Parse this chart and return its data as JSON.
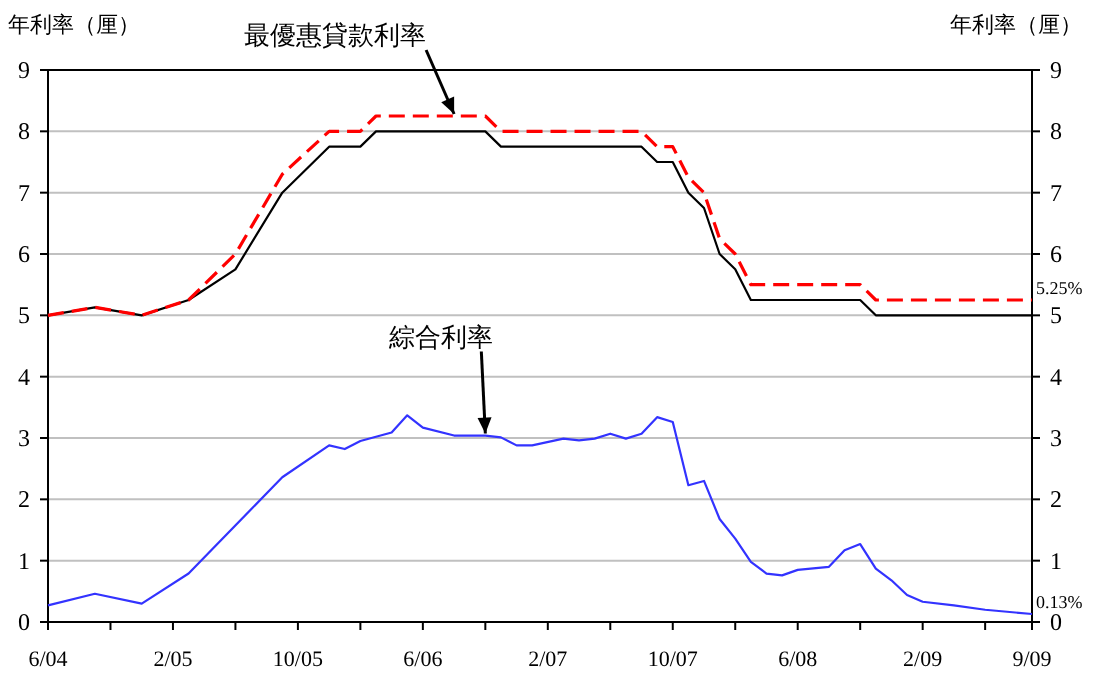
{
  "chart_data": {
    "type": "line",
    "ylabel": "年利率（厘）",
    "y2label": "年利率（厘）",
    "xlim": [
      "2004-06",
      "2009-09"
    ],
    "xticks": [
      {
        "value": "2004-06",
        "label": "6/04"
      },
      {
        "value": "2004-10",
        "label": null
      },
      {
        "value": "2005-02",
        "label": "2/05"
      },
      {
        "value": "2005-06",
        "label": null
      },
      {
        "value": "2005-10",
        "label": "10/05"
      },
      {
        "value": "2006-02",
        "label": null
      },
      {
        "value": "2006-06",
        "label": "6/06"
      },
      {
        "value": "2006-10",
        "label": null
      },
      {
        "value": "2007-02",
        "label": "2/07"
      },
      {
        "value": "2007-06",
        "label": null
      },
      {
        "value": "2007-10",
        "label": "10/07"
      },
      {
        "value": "2008-02",
        "label": null
      },
      {
        "value": "2008-06",
        "label": "6/08"
      },
      {
        "value": "2008-10",
        "label": null
      },
      {
        "value": "2009-02",
        "label": "2/09"
      },
      {
        "value": "2009-06",
        "label": null
      },
      {
        "value": "2009-09",
        "label": "9/09"
      }
    ],
    "ylim": [
      0,
      9
    ],
    "yticks": [
      0,
      1,
      2,
      3,
      4,
      5,
      6,
      7,
      8,
      9
    ],
    "y2lim": [
      0,
      9
    ],
    "y2ticks": [
      0,
      1,
      2,
      3,
      4,
      5,
      6,
      7,
      8,
      9
    ],
    "grid": "y",
    "series": [
      {
        "color": "#000000",
        "line_style": "solid",
        "x": [
          "2004-06",
          "2004-09",
          "2004-12",
          "2005-03",
          "2005-06",
          "2005-09",
          "2005-12",
          "2006-02",
          "2006-03",
          "2006-10",
          "2006-11",
          "2007-08",
          "2007-09",
          "2007-10",
          "2007-11",
          "2007-12",
          "2008-01",
          "2008-02",
          "2008-03",
          "2008-10",
          "2008-11",
          "2009-09"
        ],
        "values": [
          5.0,
          5.13,
          5.0,
          5.25,
          5.75,
          7.0,
          7.75,
          7.75,
          8.0,
          8.0,
          7.75,
          7.75,
          7.5,
          7.5,
          7.0,
          6.75,
          6.0,
          5.75,
          5.25,
          5.25,
          5.0,
          5.0
        ]
      },
      {
        "color": "#ff0000",
        "line_style": "dashed",
        "x": [
          "2004-06",
          "2004-09",
          "2004-12",
          "2005-03",
          "2005-06",
          "2005-09",
          "2005-12",
          "2006-02",
          "2006-03",
          "2006-10",
          "2006-11",
          "2007-08",
          "2007-09",
          "2007-10",
          "2007-11",
          "2007-12",
          "2008-01",
          "2008-02",
          "2008-03",
          "2008-10",
          "2008-11",
          "2009-09"
        ],
        "values": [
          5.0,
          5.13,
          5.0,
          5.25,
          6.0,
          7.3,
          8.0,
          8.0,
          8.25,
          8.25,
          8.0,
          8.0,
          7.75,
          7.75,
          7.25,
          7.0,
          6.25,
          6.0,
          5.5,
          5.5,
          5.25,
          5.25
        ],
        "value_labels": [
          null,
          null,
          null,
          null,
          null,
          null,
          null,
          null,
          null,
          null,
          null,
          null,
          null,
          null,
          null,
          null,
          null,
          null,
          null,
          null,
          null,
          "5.25%"
        ]
      },
      {
        "color": "#3333ff",
        "line_style": "solid",
        "x": [
          "2004-06",
          "2004-09",
          "2004-12",
          "2005-03",
          "2005-09",
          "2005-12",
          "2006-01",
          "2006-02",
          "2006-04",
          "2006-05",
          "2006-06",
          "2006-08",
          "2006-10",
          "2006-11",
          "2006-12",
          "2007-01",
          "2007-03",
          "2007-04",
          "2007-05",
          "2007-06",
          "2007-07",
          "2007-08",
          "2007-09",
          "2007-10",
          "2007-11",
          "2007-12",
          "2008-01",
          "2008-02",
          "2008-03",
          "2008-04",
          "2008-05",
          "2008-06",
          "2008-08",
          "2008-09",
          "2008-10",
          "2008-11",
          "2008-12",
          "2009-01",
          "2009-02",
          "2009-04",
          "2009-06",
          "2009-09"
        ],
        "values": [
          0.27,
          0.46,
          0.3,
          0.79,
          2.36,
          2.88,
          2.82,
          2.95,
          3.09,
          3.37,
          3.17,
          3.04,
          3.04,
          3.01,
          2.88,
          2.88,
          2.99,
          2.96,
          2.99,
          3.07,
          2.99,
          3.07,
          3.34,
          3.26,
          2.23,
          2.3,
          1.68,
          1.36,
          0.98,
          0.79,
          0.76,
          0.85,
          0.9,
          1.17,
          1.27,
          0.87,
          0.68,
          0.44,
          0.33,
          0.27,
          0.2,
          0.13
        ],
        "value_labels": [
          null,
          null,
          null,
          null,
          null,
          null,
          null,
          null,
          null,
          null,
          null,
          null,
          null,
          null,
          null,
          null,
          null,
          null,
          null,
          null,
          null,
          null,
          null,
          null,
          null,
          null,
          null,
          null,
          null,
          null,
          null,
          null,
          null,
          null,
          null,
          null,
          null,
          null,
          null,
          null,
          null,
          "0.13%"
        ]
      }
    ],
    "annotations": [
      {
        "text": "最優惠貸款利率",
        "x": "2006-08",
        "y": 8.25
      },
      {
        "text": "綜合利率",
        "x": "2006-10",
        "y": 3.04
      }
    ]
  }
}
